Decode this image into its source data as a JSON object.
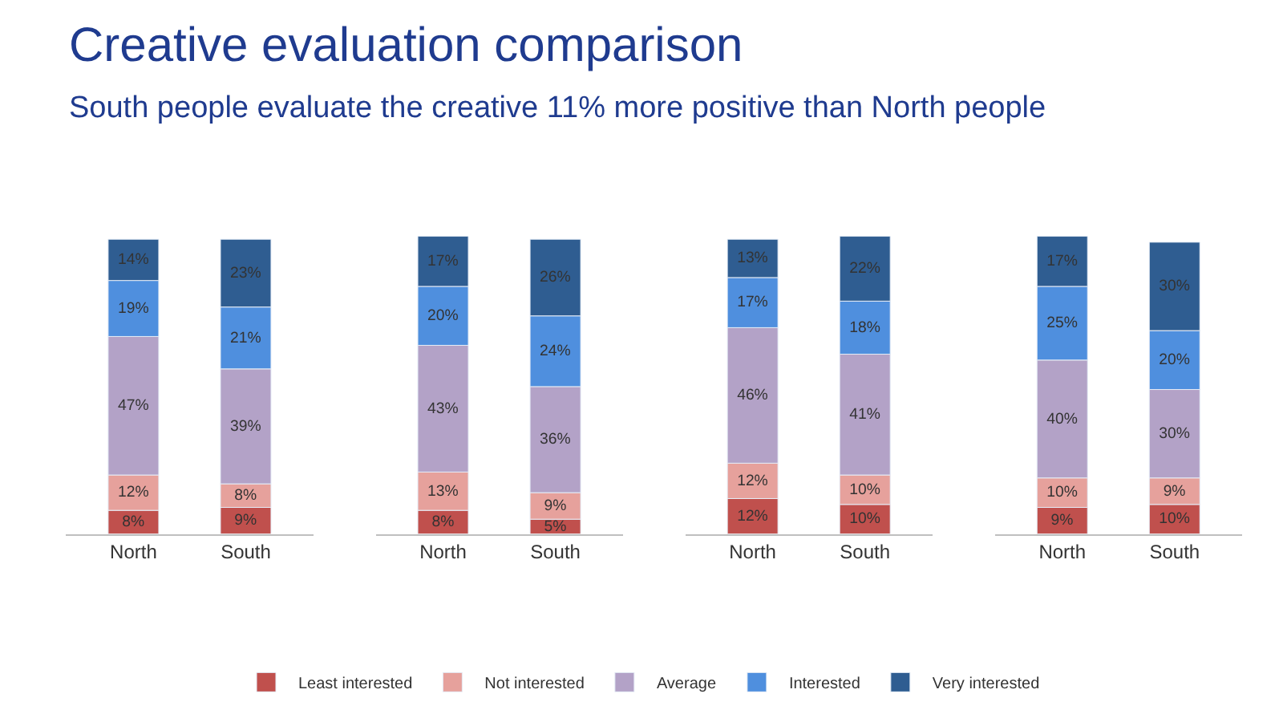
{
  "chart_data": [
    {
      "type": "bar",
      "title": "Creative evaluation comparison",
      "subtitle": "South people evaluate the creative 11% more positive than North people",
      "stacked": true,
      "legend": "bottom",
      "tick_labels": "x",
      "ylim": [
        0,
        101
      ],
      "categories": [
        "North",
        "South"
      ],
      "series": [
        {
          "name": "Least interested",
          "color": "#c0504d",
          "values": [
            8,
            9
          ],
          "value_labels": [
            "8%",
            "9%"
          ]
        },
        {
          "name": "Not interested",
          "color": "#e6a19c",
          "values": [
            12,
            8
          ],
          "value_labels": [
            "12%",
            "8%"
          ]
        },
        {
          "name": "Average",
          "color": "#b3a2c7",
          "values": [
            47,
            39
          ],
          "value_labels": [
            "47%",
            "39%"
          ]
        },
        {
          "name": "Interested",
          "color": "#4f8fde",
          "values": [
            19,
            21
          ],
          "value_labels": [
            "19%",
            "21%"
          ]
        },
        {
          "name": "Very interested",
          "color": "#2f5d91",
          "values": [
            14,
            23
          ],
          "value_labels": [
            "14%",
            "23%"
          ]
        }
      ]
    },
    {
      "type": "bar",
      "stacked": true,
      "tick_labels": "x",
      "ylim": [
        0,
        101
      ],
      "categories": [
        "North",
        "South"
      ],
      "series": [
        {
          "color": "#c0504d",
          "values": [
            8,
            5
          ],
          "value_labels": [
            "8%",
            "5%"
          ]
        },
        {
          "color": "#e6a19c",
          "values": [
            13,
            9
          ],
          "value_labels": [
            "13%",
            "9%"
          ]
        },
        {
          "color": "#b3a2c7",
          "values": [
            43,
            36
          ],
          "value_labels": [
            "43%",
            "36%"
          ]
        },
        {
          "color": "#4f8fde",
          "values": [
            20,
            24
          ],
          "value_labels": [
            "20%",
            "24%"
          ]
        },
        {
          "color": "#2f5d91",
          "values": [
            17,
            26
          ],
          "value_labels": [
            "17%",
            "26%"
          ]
        }
      ]
    },
    {
      "type": "bar",
      "stacked": true,
      "tick_labels": "x",
      "ylim": [
        0,
        101
      ],
      "categories": [
        "North",
        "South"
      ],
      "series": [
        {
          "color": "#c0504d",
          "values": [
            12,
            10
          ],
          "value_labels": [
            "12%",
            "10%"
          ]
        },
        {
          "color": "#e6a19c",
          "values": [
            12,
            10
          ],
          "value_labels": [
            "12%",
            "10%"
          ]
        },
        {
          "color": "#b3a2c7",
          "values": [
            46,
            41
          ],
          "value_labels": [
            "46%",
            "41%"
          ]
        },
        {
          "color": "#4f8fde",
          "values": [
            17,
            18
          ],
          "value_labels": [
            "17%",
            "18%"
          ]
        },
        {
          "color": "#2f5d91",
          "values": [
            13,
            22
          ],
          "value_labels": [
            "13%",
            "22%"
          ]
        }
      ]
    },
    {
      "type": "bar",
      "stacked": true,
      "tick_labels": "x",
      "ylim": [
        0,
        101
      ],
      "categories": [
        "North",
        "South"
      ],
      "series": [
        {
          "color": "#c0504d",
          "values": [
            9,
            10
          ],
          "value_labels": [
            "9%",
            "10%"
          ]
        },
        {
          "color": "#e6a19c",
          "values": [
            10,
            9
          ],
          "value_labels": [
            "10%",
            "9%"
          ]
        },
        {
          "color": "#b3a2c7",
          "values": [
            40,
            30
          ],
          "value_labels": [
            "40%",
            "30%"
          ]
        },
        {
          "color": "#4f8fde",
          "values": [
            25,
            20
          ],
          "value_labels": [
            "25%",
            "20%"
          ]
        },
        {
          "color": "#2f5d91",
          "values": [
            17,
            30
          ],
          "value_labels": [
            "17%",
            "30%"
          ]
        }
      ]
    }
  ]
}
